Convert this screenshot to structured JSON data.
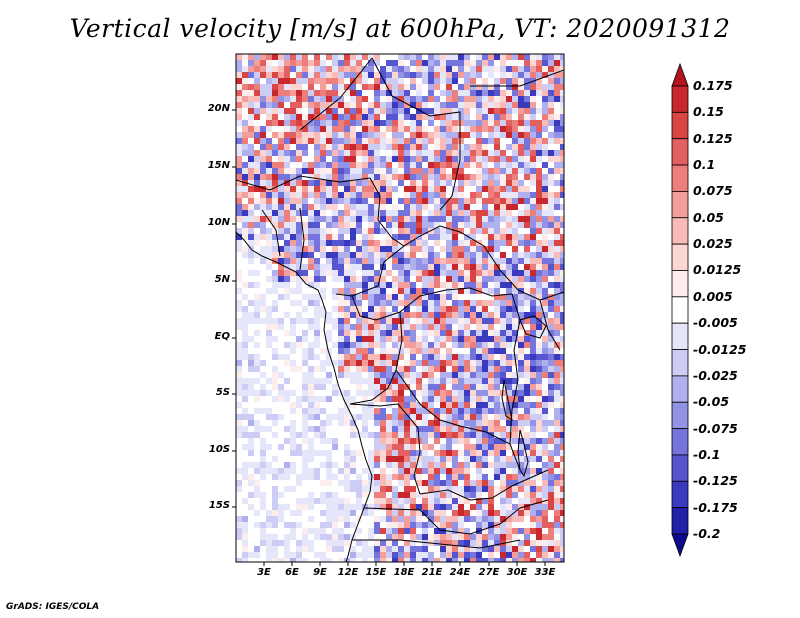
{
  "title": "Vertical velocity [m/s] at 600hPa, VT: 2020091312",
  "credit": "GrADS: IGES/COLA",
  "map": {
    "lat_ticks": [
      "20N",
      "15N",
      "10N",
      "5N",
      "EQ",
      "5S",
      "10S",
      "15S"
    ],
    "lon_ticks": [
      "3E",
      "6E",
      "9E",
      "12E",
      "15E",
      "18E",
      "21E",
      "24E",
      "27E",
      "30E",
      "33E"
    ],
    "land_color": "#f4f4f4",
    "ocean_color": "#d8d8ff"
  },
  "colorbar": {
    "labels": [
      "0.175",
      "0.15",
      "0.125",
      "0.1",
      "0.075",
      "0.05",
      "0.025",
      "0.0125",
      "0.005",
      "-0.005",
      "-0.0125",
      "-0.025",
      "-0.05",
      "-0.075",
      "-0.1",
      "-0.125",
      "-0.175",
      "-0.2"
    ],
    "colors": [
      "#b3141e",
      "#c8282d",
      "#d94543",
      "#e46060",
      "#ec7f7c",
      "#f39e9b",
      "#f8bbb8",
      "#fbd6d3",
      "#fdeeed",
      "#ffffff",
      "#e6e6fb",
      "#ccccf5",
      "#b0b0ee",
      "#9393e6",
      "#7474dc",
      "#5555cf",
      "#3a3abf",
      "#2020a8",
      "#0c0c8e"
    ]
  }
}
